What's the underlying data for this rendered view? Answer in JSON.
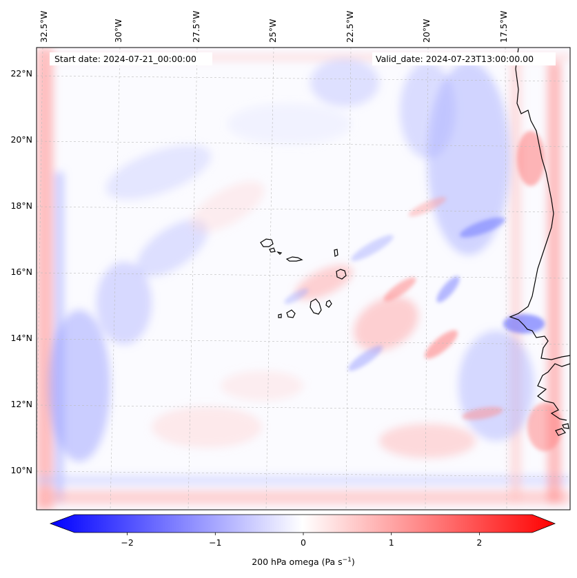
{
  "map": {
    "start_date_text": "Start date: 2024-07-21_00:00:00",
    "valid_date_text": "Valid_date: 2024-07-23T13:00:00.00",
    "top_lon_labels": [
      "32.5°W",
      "30°W",
      "27.5°W",
      "25°W",
      "22.5°W",
      "20°W",
      "17.5°W"
    ],
    "left_lat_labels": [
      "22°N",
      "20°N",
      "18°N",
      "16°N",
      "14°N",
      "12°N",
      "10°N"
    ],
    "field": "200 hPa omega",
    "colormap": "bwr",
    "colors": {
      "negative": "#0000ff",
      "zero": "#ffffff",
      "positive": "#ff0000",
      "coastline": "#000000",
      "grid": "#bbbbbb"
    }
  },
  "colorbar": {
    "ticks": [
      "−2",
      "−1",
      "0",
      "1",
      "2"
    ],
    "tick_values": [
      -2,
      -1,
      0,
      1,
      2
    ],
    "range": [
      -2.6,
      2.6
    ],
    "label_prefix": "200 hPa omega (Pa s",
    "label_exponent": "−1",
    "label_suffix": ")",
    "extend": "both"
  }
}
